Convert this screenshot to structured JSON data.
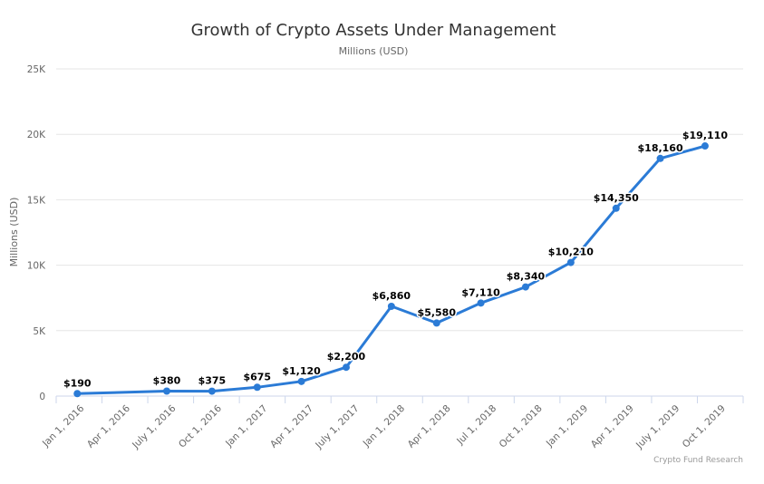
{
  "chart_data": {
    "type": "line",
    "title": "Growth of Crypto Assets Under Management",
    "subtitle": "Millions (USD)",
    "ylabel": "Millions (USD)",
    "xlabel": "",
    "ylim": [
      0,
      25000
    ],
    "y_ticks": [
      0,
      5000,
      10000,
      15000,
      20000,
      25000
    ],
    "y_tick_labels": [
      "0",
      "5K",
      "10K",
      "15K",
      "20K",
      "25K"
    ],
    "categories": [
      "Jan 1, 2016",
      "Apr 1, 2016",
      "July 1, 2016",
      "Oct 1, 2016",
      "Jan 1, 2017",
      "Apr 1, 2017",
      "July 1, 2017",
      "Jan 1, 2018",
      "Apr 1, 2018",
      "Jul 1, 2018",
      "Oct 1, 2018",
      "Jan 1, 2019",
      "Apr 1, 2019",
      "July 1, 2019",
      "Oct 1, 2019"
    ],
    "points": [
      {
        "x": "2016-01-01",
        "y": 190,
        "label": "$190"
      },
      {
        "x": "2016-07-01",
        "y": 380,
        "label": "$380"
      },
      {
        "x": "2016-10-01",
        "y": 375,
        "label": "$375"
      },
      {
        "x": "2017-01-01",
        "y": 675,
        "label": "$675"
      },
      {
        "x": "2017-04-01",
        "y": 1120,
        "label": "$1,120"
      },
      {
        "x": "2017-07-01",
        "y": 2200,
        "label": "$2,200"
      },
      {
        "x": "2017-10-01",
        "y": 6860,
        "label": "$6,860"
      },
      {
        "x": "2018-01-01",
        "y": 5580,
        "label": "$5,580"
      },
      {
        "x": "2018-04-01",
        "y": 7110,
        "label": "$7,110"
      },
      {
        "x": "2018-07-01",
        "y": 8340,
        "label": "$8,340"
      },
      {
        "x": "2018-10-01",
        "y": 10210,
        "label": "$10,210"
      },
      {
        "x": "2019-01-01",
        "y": 14350,
        "label": "$14,350"
      },
      {
        "x": "2019-04-01",
        "y": 18160,
        "label": "$18,160"
      },
      {
        "x": "2019-07-01",
        "y": 19110,
        "label": "$19,110"
      }
    ],
    "grid": true,
    "legend": "none",
    "line_color": "#2b7bd6",
    "credit": "Crypto Fund Research"
  }
}
